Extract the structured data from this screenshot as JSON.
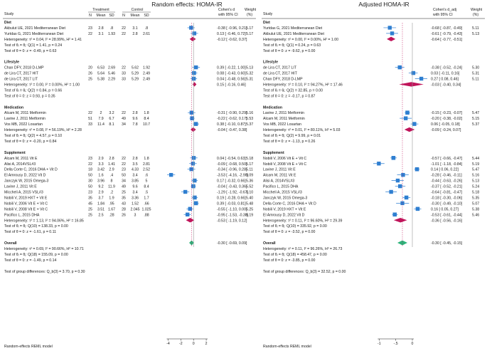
{
  "chart_data": [
    {
      "type": "forest",
      "title": "Random effects: HOMA-IR",
      "xlabel": "",
      "xlim": [
        -4.5,
        3
      ],
      "ticks": [
        -4,
        -2,
        0,
        2
      ],
      "x_tick_labels": [
        "-4",
        "-2",
        "0",
        "2"
      ],
      "model_note": "Random-effects REML model",
      "headers": {
        "study": "Study",
        "group_treat": "Treatment",
        "group_ctrl": "Control",
        "n": "N",
        "mean": "Mean",
        "sd": "SD",
        "effect_line1": "Cohen's d",
        "effect_line2": "with 95% CI",
        "weight_line1": "Weight",
        "weight_line2": "(%)"
      },
      "groups": [
        {
          "name": "Diet",
          "studies": [
            {
              "label": "Akbulut UE, 2021 Mediterranean Diet",
              "tn": "23",
              "tm": "2.8",
              "tsd": ".8",
              "cn": "22",
              "cm": "3.1",
              "csd": ".8",
              "text": "-0.38 [ -0.96,  0.21]",
              "weight": "5.17",
              "est": -0.38,
              "lo": -0.96,
              "hi": 0.21,
              "w": 5.17
            },
            {
              "label": "Yurtdas G, 2021 Mediterranean Diet",
              "tn": "22",
              "tm": "3.1",
              "tsd": "1.93",
              "cn": "22",
              "cm": "2.8",
              "csd": "2.61",
              "text": "0.13 [ -0.46,  0.72]",
              "weight": "5.17",
              "est": 0.13,
              "lo": -0.46,
              "hi": 0.72,
              "w": 5.17
            }
          ],
          "het": "Heterogeneity: τ² = 0.04, I² = 28.99%, H² = 1.41",
          "pooled": {
            "text": "-0.12 [ -0.62,  0.37]",
            "est": -0.12,
            "lo": -0.62,
            "hi": 0.37
          },
          "test1": "Test of θᵢ = θⱼ: Q(1) = 1.41, p = 0.24",
          "test2": "Test of θ = 0: z = -0.49, p = 0.63"
        },
        {
          "name": "Lifestyle",
          "studies": [
            {
              "label": "Chan DFY, 2018 D-LMP",
              "tn": "20",
              "tm": "6.53",
              "tsd": "2.69",
              "cn": "22",
              "cm": "5.62",
              "csd": "1.92",
              "text": "0.39 [ -0.22,  1.00]",
              "weight": "5.13",
              "est": 0.39,
              "lo": -0.22,
              "hi": 1.0,
              "w": 5.13
            },
            {
              "label": "de Lira CT, 2017 HIT",
              "tn": "26",
              "tm": "5.64",
              "tsd": "5.46",
              "cn": "33",
              "cm": "5.29",
              "csd": "2.49",
              "text": "0.08 [ -0.43,  0.60]",
              "weight": "5.32",
              "est": 0.08,
              "lo": -0.43,
              "hi": 0.6,
              "w": 5.32
            },
            {
              "label": "de Lira CT, 2017 LIT",
              "tn": "25",
              "tm": "5.38",
              "tsd": "2.29",
              "cn": "33",
              "cm": "5.29",
              "csd": "2.49",
              "text": "0.04 [ -0.48,  0.56]",
              "weight": "5.31",
              "est": 0.04,
              "lo": -0.48,
              "hi": 0.56,
              "w": 5.31
            }
          ],
          "het": "Heterogeneity: τ² = 0.00, I² = 0.00%, H² = 1.00",
          "pooled": {
            "text": "0.15 [ -0.16,  0.46]",
            "est": 0.15,
            "lo": -0.16,
            "hi": 0.46
          },
          "test1": "Test of θᵢ = θⱼ: Q(2) = 0.84, p = 0.66",
          "test2": "Test of θ = 0: z = 0.93, p = 0.35"
        },
        {
          "name": "Medication",
          "studies": [
            {
              "label": "Alcam M, 2011 Metformin",
              "tn": "22",
              "tm": "2",
              "tsd": "3.2",
              "cn": "22",
              "cm": "2.8",
              "csd": "1.8",
              "text": "-0.31 [ -0.90,  0.29]",
              "weight": "5.16",
              "est": -0.31,
              "lo": -0.9,
              "hi": 0.29,
              "w": 5.16
            },
            {
              "label": "Lavine J, 2011 Metformin",
              "tn": "51",
              "tm": "7.9",
              "tsd": "6.7",
              "cn": "49",
              "cm": "9.6",
              "csd": "8.4",
              "text": "-0.22 [ -0.62,  0.17]",
              "weight": "5.53",
              "est": -0.22,
              "lo": -0.62,
              "hi": 0.17,
              "w": 5.53
            },
            {
              "label": "Vos MB, 2022 Losartan",
              "tn": "33",
              "tm": "11.4",
              "tsd": "8.1",
              "cn": "34",
              "cm": "7.8",
              "csd": "10.7",
              "text": "0.38 [ -0.10,  0.87]",
              "weight": "5.37",
              "est": 0.38,
              "lo": -0.1,
              "hi": 0.87,
              "w": 5.37
            }
          ],
          "het": "Heterogeneity: τ² = 0.08, I² = 56.19%, H² = 2.28",
          "pooled": {
            "text": "-0.04 [ -0.47,  0.38]",
            "est": -0.04,
            "lo": -0.47,
            "hi": 0.38
          },
          "test1": "Test of θᵢ = θⱼ: Q(2) = 4.57, p = 0.10",
          "test2": "Test of θ = 0: z = -0.20, p = 0.84"
        },
        {
          "name": "Supplement",
          "studies": [
            {
              "label": "Alcam M, 2011 Vit E",
              "tn": "23",
              "tm": "2.9",
              "tsd": "2.8",
              "cn": "22",
              "cm": "2.8",
              "csd": "1.8",
              "text": "0.04 [ -0.54,  0.63]",
              "weight": "5.18",
              "est": 0.04,
              "lo": -0.54,
              "hi": 0.63,
              "w": 5.18
            },
            {
              "label": "Alisi A, 2014VSL#3",
              "tn": "22",
              "tm": "3.3",
              "tsd": "1.41",
              "cn": "22",
              "cm": "3.5",
              "csd": "2.81",
              "text": "-0.09 [ -0.68,  0.50]",
              "weight": "5.17",
              "est": -0.09,
              "lo": -0.68,
              "hi": 0.5,
              "w": 5.17
            },
            {
              "label": "Della Corte C, 2016 DHA + Vit D",
              "tn": "18",
              "tm": "3.42",
              "tsd": "2.9",
              "cn": "23",
              "cm": "4.33",
              "csd": "2.52",
              "text": "-0.34 [ -0.96,  0.28]",
              "weight": "5.11",
              "est": -0.34,
              "lo": -0.96,
              "hi": 0.28,
              "w": 5.11
            },
            {
              "label": "El Amrousy D, 2022 Vit D",
              "tn": "50",
              "tm": "1.6",
              "tsd": ".4",
              "cn": "50",
              "cm": "3.4",
              "csd": ".6",
              "text": "-3.53 [ -4.16, -2.90]",
              "weight": "5.09",
              "est": -3.53,
              "lo": -4.16,
              "hi": -2.9,
              "w": 5.09
            },
            {
              "label": "Janczyk W, 2015 Omega-3",
              "tn": "30",
              "tm": "3.96",
              "tsd": "8",
              "cn": "34",
              "cm": "3.85",
              "csd": "5",
              "text": "0.17 [ -0.32,  0.66]",
              "weight": "5.36",
              "est": 0.17,
              "lo": -0.32,
              "hi": 0.66,
              "w": 5.36
            },
            {
              "label": "Lavine J, 2011 Vit E",
              "tn": "50",
              "tm": "9.2",
              "tsd": "11.9",
              "cn": "49",
              "cm": "9.6",
              "csd": "8.4",
              "text": "-0.04 [ -0.43,  0.36]",
              "weight": "5.52",
              "est": -0.04,
              "lo": -0.43,
              "hi": 0.36,
              "w": 5.52
            },
            {
              "label": "Miccheli A, 2015 VSL#3",
              "tn": "23",
              "tm": "2.9",
              "tsd": ".2",
              "cn": "25",
              "cm": "3.4",
              "csd": ".5",
              "text": "-1.29 [ -1.92, -0.67]",
              "weight": "5.10",
              "est": -1.29,
              "lo": -1.92,
              "hi": -0.67,
              "w": 5.1
            },
            {
              "label": "Nobili V, 2019 HXT + Vit E",
              "tn": "35",
              "tm": "3.7",
              "tsd": "1.9",
              "cn": "35",
              "cm": "3.36",
              "csd": "1.7",
              "text": "0.19 [ -0.28,  0.66]",
              "weight": "5.40",
              "est": 0.19,
              "lo": -0.28,
              "hi": 0.66,
              "w": 5.4
            },
            {
              "label": "Nobili V, 2006 Vit E + Vit C",
              "tn": "45",
              "tm": "1.84",
              "tsd": ".95",
              "cn": "43",
              "cm": "1.52",
              "csd": ".66",
              "text": "0.39 [ -0.03,  0.81]",
              "weight": "5.48",
              "est": 0.39,
              "lo": -0.03,
              "hi": 0.81,
              "w": 5.48
            },
            {
              "label": "Nobili V, 2008 Vit E + Vit C",
              "tn": "25",
              "tm": "3.51",
              "tsd": "1.67",
              "cn": "28",
              "cm": "2.045",
              "csd": "1.025",
              "text": "-0.55 [ -1.10,  0.00]",
              "weight": "5.25",
              "est": -0.55,
              "lo": -1.1,
              "hi": 0.0,
              "w": 5.25
            },
            {
              "label": "Pacifico L, 2015 DHA",
              "tn": "25",
              "tm": "2.5",
              "tsd": ".28",
              "cn": "26",
              "cm": "3",
              "csd": ".88",
              "text": "-0.95 [ -1.53, -0.38]",
              "weight": "5.19",
              "est": -0.95,
              "lo": -1.53,
              "hi": -0.38,
              "w": 5.19
            }
          ],
          "het": "Heterogeneity: τ² = 1.13, I² = 94.06%, H² = 16.85",
          "pooled": {
            "text": "-0.53 [ -1.19,  0.12]",
            "est": -0.53,
            "lo": -1.19,
            "hi": 0.12
          },
          "test1": "Test of θᵢ = θⱼ: Q(10) = 138.33, p = 0.00",
          "test2": "Test of θ = 0: z = -1.61, p = 0.11"
        }
      ],
      "overall": {
        "label": "Overall",
        "text": "-0.30 [ -0.69,  0.09]",
        "est": -0.3,
        "lo": -0.69,
        "hi": 0.09,
        "het": "Heterogeneity: τ² = 0.69, I² = 90.66%, H² = 10.71",
        "test1": "Test of θᵢ = θⱼ: Q(18) = 155.09, p = 0.00",
        "test2": "Test of θ = 0: z = -1.49, p = 0.14"
      },
      "group_test": "Test of group differences: Q_b(3) = 3.70, p = 0.30"
    },
    {
      "type": "forest",
      "title": "Adjusted HOMA-IR",
      "xlabel": "",
      "xlim": [
        -1.35,
        0.45
      ],
      "ticks": [
        -1,
        -0.5,
        0
      ],
      "x_tick_labels": [
        "-1",
        "-.5",
        "0"
      ],
      "model_note": "Random-effects REML model",
      "headers": {
        "study": "Study",
        "effect_line1": "Cohen's d_adj",
        "effect_line2": "with 95% CI",
        "weight_line1": "Weight",
        "weight_line2": "(%)"
      },
      "groups": [
        {
          "name": "Diet",
          "studies": [
            {
              "label": "Yurtdas G, 2021 Mediterranean Diet",
              "text": "-0.68 [ -0.87, -0.49]",
              "weight": "5.11",
              "est": -0.68,
              "lo": -0.87,
              "hi": -0.49,
              "w": 5.11
            },
            {
              "label": "Akbulut UE, 2021 Mediterranean Diet",
              "text": "-0.61 [ -0.79, -0.43]",
              "weight": "5.13",
              "est": -0.61,
              "lo": -0.79,
              "hi": -0.43,
              "w": 5.13
            }
          ],
          "het": "Heterogeneity: τ² = 0.00, I² = 0.00%, H² = 1.00",
          "pooled": {
            "text": "-0.64 [ -0.77, -0.51]",
            "est": -0.64,
            "lo": -0.77,
            "hi": -0.51
          },
          "test1": "Test of θᵢ = θⱼ: Q(1) = 0.24, p = 0.63",
          "test2": "Test of θ = 0: z = -9.62, p = 0.00"
        },
        {
          "name": "Lifestyle",
          "studies": [
            {
              "label": "de Lira CT, 2017 LIT",
              "text": "-0.38 [ -0.52, -0.24]",
              "weight": "5.30",
              "est": -0.38,
              "lo": -0.52,
              "hi": -0.24,
              "w": 5.3
            },
            {
              "label": "de Lira CT, 2017 HIT",
              "text": "0.03 [ -0.11,  0.16]",
              "weight": "5.31",
              "est": 0.03,
              "lo": -0.11,
              "hi": 0.16,
              "w": 5.31
            },
            {
              "label": "Chan DFY, 2018 D-LMP",
              "text": "0.27 [  0.08,  0.46]",
              "weight": "5.11",
              "est": 0.27,
              "lo": 0.08,
              "hi": 0.46,
              "w": 5.11
            }
          ],
          "het": "Heterogeneity: τ² = 0.10, I² = 94.27%, H² = 17.46",
          "pooled": {
            "text": "-0.03 [ -0.40,  0.34]",
            "est": -0.03,
            "lo": -0.4,
            "hi": 0.34
          },
          "test1": "Test of θᵢ = θⱼ: Q(2) = 32.85, p = 0.00",
          "test2": "Test of θ = 0: z = -0.17, p = 0.87"
        },
        {
          "name": "Medication",
          "studies": [
            {
              "label": "Lavine J, 2011 Metformin",
              "text": "-0.15 [ -0.23, -0.07]",
              "weight": "5.47",
              "est": -0.15,
              "lo": -0.23,
              "hi": -0.07,
              "w": 5.47
            },
            {
              "label": "Alcam M, 2011 Metformin",
              "text": "-0.20 [ -0.38, -0.02]",
              "weight": "5.15",
              "est": -0.2,
              "lo": -0.38,
              "hi": -0.02,
              "w": 5.15
            },
            {
              "label": "Vos MB, 2022 Losartan",
              "text": "0.06 [ -0.05,  0.18]",
              "weight": "5.37",
              "est": 0.06,
              "lo": -0.05,
              "hi": 0.18,
              "w": 5.37
            }
          ],
          "het": "Heterogeneity: τ² = 0.01, I² = 80.11%, H² = 5.03",
          "pooled": {
            "text": "-0.09 [ -0.24,  0.07]",
            "est": -0.09,
            "lo": -0.24,
            "hi": 0.07
          },
          "test1": "Test of θᵢ = θⱼ: Q(2) = 9.99, p = 0.01",
          "test2": "Test of θ = 0: z = -1.13, p = 0.26"
        },
        {
          "name": "Supplement",
          "studies": [
            {
              "label": "Nobili V, 2006 Vit E + Vit C",
              "text": "-0.57 [ -0.66, -0.47]",
              "weight": "5.44",
              "est": -0.57,
              "lo": -0.66,
              "hi": -0.47,
              "w": 5.44
            },
            {
              "label": "Nobili V, 2008 Vit E + Vit C",
              "text": "-1.01 [ -1.18, -0.84]",
              "weight": "5.19",
              "est": -1.01,
              "lo": -1.18,
              "hi": -0.84,
              "w": 5.19
            },
            {
              "label": "Lavine J, 2011 Vit E",
              "text": "0.14 [  0.06,  0.22]",
              "weight": "5.47",
              "est": 0.14,
              "lo": 0.06,
              "hi": 0.22,
              "w": 5.47
            },
            {
              "label": "Alcam M, 2011 Vit E",
              "text": "-0.28 [ -0.46, -0.11]",
              "weight": "5.16",
              "est": -0.28,
              "lo": -0.46,
              "hi": -0.11,
              "w": 5.16
            },
            {
              "label": "Alisi A, 2014VSL#3",
              "text": "-0.44 [ -0.63, -0.26]",
              "weight": "5.13",
              "est": -0.44,
              "lo": -0.63,
              "hi": -0.26,
              "w": 5.13
            },
            {
              "label": "Pacifico L, 2015 DHA",
              "text": "-0.37 [ -0.52, -0.21]",
              "weight": "5.24",
              "est": -0.37,
              "lo": -0.52,
              "hi": -0.21,
              "w": 5.24
            },
            {
              "label": "Miccheli A, 2015 VSL#3",
              "text": "-0.64 [ -0.81, -0.47]",
              "weight": "5.18",
              "est": -0.64,
              "lo": -0.81,
              "hi": -0.47,
              "w": 5.18
            },
            {
              "label": "Janczyk W, 2015 Omega-3",
              "text": "-0.18 [ -0.30, -0.06]",
              "weight": "5.35",
              "est": -0.18,
              "lo": -0.3,
              "hi": -0.06,
              "w": 5.35
            },
            {
              "label": "Della Corte C, 2016 DHA + Vit D",
              "text": "-0.30 [ -0.49, -0.10]",
              "weight": "5.07",
              "est": -0.3,
              "lo": -0.49,
              "hi": -0.1,
              "w": 5.07
            },
            {
              "label": "Nobili V, 2019 HXT + Vit E",
              "text": "0.16 [  0.05,  0.27]",
              "weight": "5.38",
              "est": 0.16,
              "lo": 0.05,
              "hi": 0.27,
              "w": 5.38
            },
            {
              "label": "El Amrousy D, 2022 Vit D",
              "text": "-0.53 [ -0.61, -0.44]",
              "weight": "5.46",
              "est": -0.53,
              "lo": -0.61,
              "hi": -0.44,
              "w": 5.46
            }
          ],
          "het": "Heterogeneity: τ² = 0.11, I² = 96.60%, H² = 29.39",
          "pooled": {
            "text": "-0.36 [ -0.56, -0.16]",
            "est": -0.36,
            "lo": -0.56,
            "hi": -0.16
          },
          "test1": "Test of θᵢ = θⱼ: Q(10) = 335.92, p = 0.00",
          "test2": "Test of θ = 0: z = -3.52, p = 0.00"
        }
      ],
      "overall": {
        "label": "Overall",
        "text": "-0.30 [ -0.45, -0.15]",
        "est": -0.3,
        "lo": -0.45,
        "hi": -0.15,
        "het": "Heterogeneity: τ² = 0.11, I² = 96.26%, H² = 26.73",
        "test1": "Test of θᵢ = θⱼ: Q(18) = 458.47, p = 0.00",
        "test2": "Test of θ = 0: z = -3.85, p = 0.00"
      },
      "group_test": "Test of group differences: Q_b(3) = 32.52, p = 0.00"
    }
  ],
  "colors": {
    "study_marker": "#2f7fd1",
    "subgroup_diamond": "#c0145a",
    "overall_diamond": "#2db37a",
    "ci_line": "#2f7fd1",
    "null_line": "#9a9a9a",
    "overall_line": "#c0145a"
  }
}
